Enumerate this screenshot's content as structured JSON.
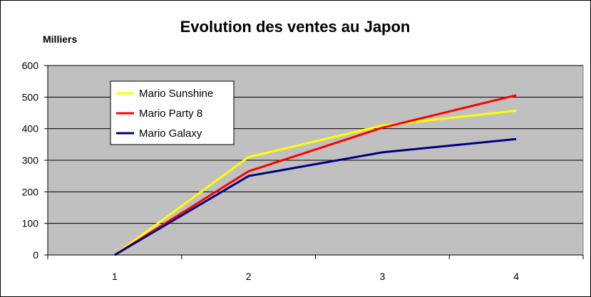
{
  "chart_data": {
    "type": "line",
    "title": "Evolution des ventes au Japon",
    "ylabel": "Milliers",
    "xlabel": "",
    "x": [
      1,
      2,
      3,
      4
    ],
    "categories": [
      "1",
      "2",
      "3",
      "4"
    ],
    "ylim": [
      0,
      600
    ],
    "yticks": [
      "0",
      "100",
      "200",
      "300",
      "400",
      "500",
      "600"
    ],
    "grid": true,
    "legend": "top-left",
    "plot_background": "#c0c0c0",
    "series": [
      {
        "name": "Mario Sunshine",
        "color": "#ffff00",
        "values": [
          0,
          310,
          410,
          457
        ]
      },
      {
        "name": "Mario Party 8",
        "color": "#ff0000",
        "values": [
          0,
          265,
          403,
          506
        ]
      },
      {
        "name": "Mario Galaxy",
        "color": "#000080",
        "values": [
          0,
          250,
          325,
          367
        ]
      }
    ]
  }
}
